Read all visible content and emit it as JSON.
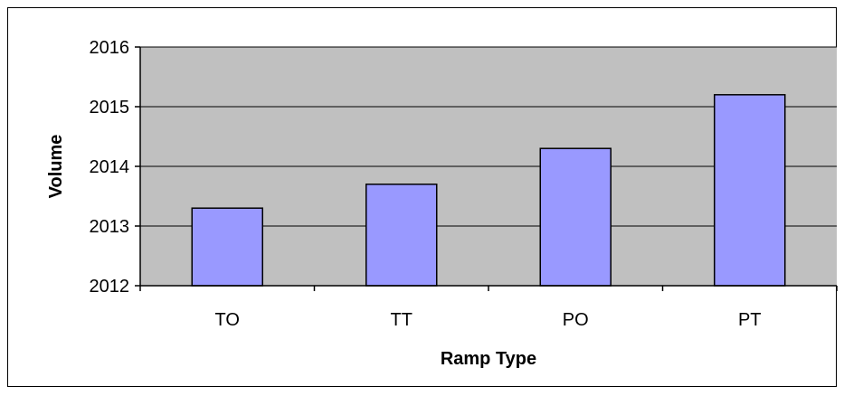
{
  "chart_data": {
    "type": "bar",
    "categories": [
      "TO",
      "TT",
      "PO",
      "PT"
    ],
    "values": [
      2013.3,
      2013.7,
      2014.3,
      2015.2
    ],
    "xlabel": "Ramp Type",
    "ylabel": "Volume",
    "ylim": [
      2012,
      2016
    ],
    "yticks": [
      2012,
      2013,
      2014,
      2015,
      2016
    ],
    "grid": true,
    "legend": "none",
    "colors": {
      "bar": "#9999ff",
      "plot_area": "#c0c0c0",
      "gridline": "#000000"
    }
  }
}
